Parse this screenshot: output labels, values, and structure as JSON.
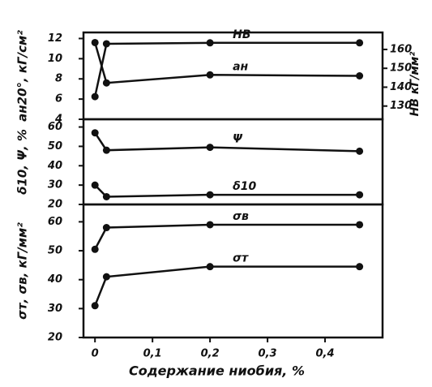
{
  "chart_data": [
    {
      "type": "line",
      "ylabel": "aн20°, кГ/см²",
      "y2label": "HB кГ/мм²",
      "x": [
        0,
        0.02,
        0.2,
        0.46
      ],
      "xlim": [
        -0.02,
        0.5
      ],
      "ylim": [
        4,
        12.6
      ],
      "yticks": [
        4,
        6,
        8,
        10,
        12
      ],
      "y2lim": [
        123,
        169
      ],
      "y2ticks": [
        130,
        140,
        150,
        160
      ],
      "series": [
        {
          "name": "HB",
          "color": "#111",
          "axis": "y2",
          "values": [
            135,
            163,
            163.5,
            163.5
          ]
        },
        {
          "name": "aн",
          "color": "#111",
          "values": [
            11.6,
            7.6,
            8.4,
            8.3
          ]
        }
      ]
    },
    {
      "type": "line",
      "ylabel": "δ10, Ψ, %",
      "x": [
        0,
        0.02,
        0.2,
        0.46
      ],
      "xlim": [
        -0.02,
        0.5
      ],
      "ylim": [
        20,
        64
      ],
      "yticks": [
        20,
        30,
        40,
        50,
        60
      ],
      "series": [
        {
          "name": "Ψ",
          "color": "#111",
          "values": [
            57,
            48,
            49.5,
            47.5
          ]
        },
        {
          "name": "δ10",
          "color": "#111",
          "values": [
            30,
            24,
            25,
            25
          ]
        }
      ]
    },
    {
      "type": "line",
      "ylabel": "σт, σв, кГ/мм²",
      "xlabel": "Содержание ниобия, %",
      "x": [
        0,
        0.02,
        0.2,
        0.46
      ],
      "xlim": [
        -0.02,
        0.5
      ],
      "xticks": [
        0,
        {
          "value": 0.1,
          "label": "0,1"
        },
        {
          "value": 0.2,
          "label": "0,2"
        },
        {
          "value": 0.3,
          "label": "0,3"
        },
        {
          "value": 0.4,
          "label": "0,4"
        }
      ],
      "ylim": [
        20,
        66
      ],
      "yticks": [
        20,
        30,
        40,
        50,
        60
      ],
      "series": [
        {
          "name": "σв",
          "color": "#111",
          "values": [
            50.5,
            58,
            59,
            59
          ]
        },
        {
          "name": "σт",
          "color": "#111",
          "values": [
            31,
            41,
            44.5,
            44.5
          ]
        }
      ]
    }
  ]
}
